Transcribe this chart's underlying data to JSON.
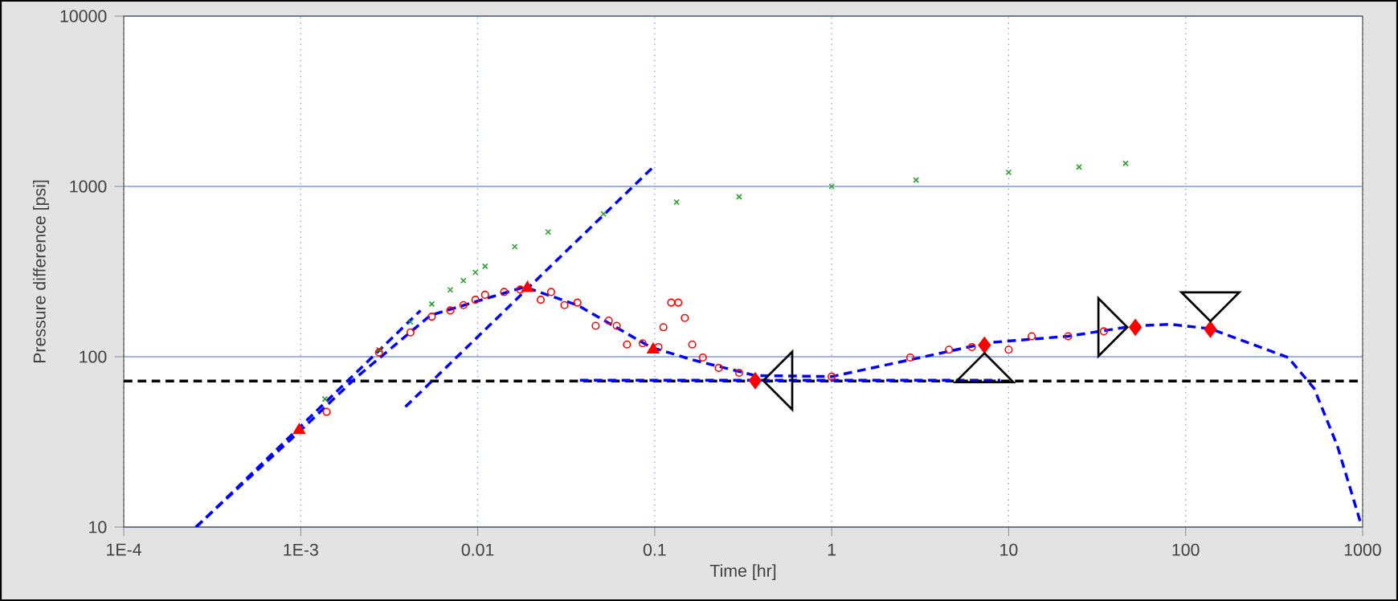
{
  "chart_data": {
    "type": "scatter",
    "xlabel": "Time [hr]",
    "ylabel": "Pressure difference [psi]",
    "log": "xy",
    "grid": true,
    "xlim": [
      0.0001,
      1000
    ],
    "ylim": [
      10,
      10000
    ],
    "xticks": [
      {
        "value": 0.0001,
        "label": "1E-4"
      },
      {
        "value": 0.001,
        "label": "1E-3"
      },
      0.01,
      0.1,
      1,
      10,
      100,
      1000
    ],
    "yticks": [
      10,
      100,
      1000,
      10000
    ],
    "ref_lines": [
      {
        "axis": "y",
        "value": 72,
        "color": "#000000",
        "line_style": "dashed"
      }
    ],
    "series": [
      {
        "marker": "cross",
        "color": "#2ca02c",
        "x": [
          0.00137,
          0.00277,
          0.00417,
          0.0055,
          0.007,
          0.0083,
          0.0097,
          0.011,
          0.0162,
          0.025,
          0.0514,
          0.133,
          0.3,
          1,
          3,
          10,
          25,
          45.8
        ],
        "values": [
          56.5,
          110,
          160,
          204,
          247,
          280,
          313,
          340,
          443,
          540,
          690,
          809,
          870,
          1000,
          1090,
          1210,
          1300,
          1365
        ]
      },
      {
        "marker": "circle",
        "color": "#ff0000",
        "x": [
          0.0014,
          0.00277,
          0.00417,
          0.0055,
          0.007,
          0.0083,
          0.0097,
          0.011,
          0.0141,
          0.0174,
          0.0198,
          0.0227,
          0.026,
          0.0309,
          0.0366,
          0.0464,
          0.055,
          0.061,
          0.0697,
          0.0855,
          0.105,
          0.112,
          0.124,
          0.136,
          0.148,
          0.163,
          0.187,
          0.23,
          0.3,
          0.37,
          1,
          2.78,
          4.6,
          6.2,
          10,
          13.5,
          21.7,
          34.5
        ],
        "values": [
          47.5,
          106,
          139,
          172,
          187,
          201,
          216,
          231,
          240,
          248,
          null,
          216,
          240,
          201,
          208,
          152,
          163,
          152,
          118,
          120,
          114,
          149,
          208,
          208,
          169,
          118,
          99,
          86,
          80.5,
          null,
          76.5,
          99,
          110,
          114,
          110,
          132,
          132,
          141
        ]
      },
      {
        "type": "line",
        "line_style": "dashed",
        "color": "#0000ff",
        "x": [
          0.000255,
          0.001,
          0.00204,
          0.0054,
          0.0184,
          0.0366,
          0.0947,
          0.163,
          0.37,
          1,
          2.78,
          7.7,
          21.7,
          52,
          82.6,
          138,
          380,
          533,
          720,
          980
        ],
        "values": [
          10,
          37,
          75,
          175,
          257,
          201,
          114,
          96,
          77.6,
          76.5,
          96,
          121,
          132,
          152,
          155,
          146,
          99,
          65,
          30,
          10.4
        ]
      },
      {
        "type": "line",
        "line_style": "dashed",
        "color": "#0000ff",
        "x": [
          0.000257,
          0.00475
        ],
        "values": [
          10,
          187
        ]
      },
      {
        "type": "line",
        "line_style": "dashed",
        "color": "#0000ff",
        "x": [
          0.0039,
          0.098
        ],
        "values": [
          50.8,
          1300
        ]
      },
      {
        "type": "line",
        "line_style": "dashed",
        "color": "#0000ff",
        "x": [
          0.0378,
          8.97
        ],
        "values": [
          72.8,
          72.8
        ]
      },
      {
        "marker": "triangle",
        "color": "#ff0000",
        "x": [
          0.00098,
          0.0191,
          0.098
        ],
        "values": [
          37,
          253,
          110
        ]
      },
      {
        "marker": "diamond",
        "color": "#ff0000",
        "x": [
          0.37,
          7.3,
          52,
          138
        ],
        "values": [
          72.4,
          117,
          149,
          145
        ]
      }
    ]
  }
}
